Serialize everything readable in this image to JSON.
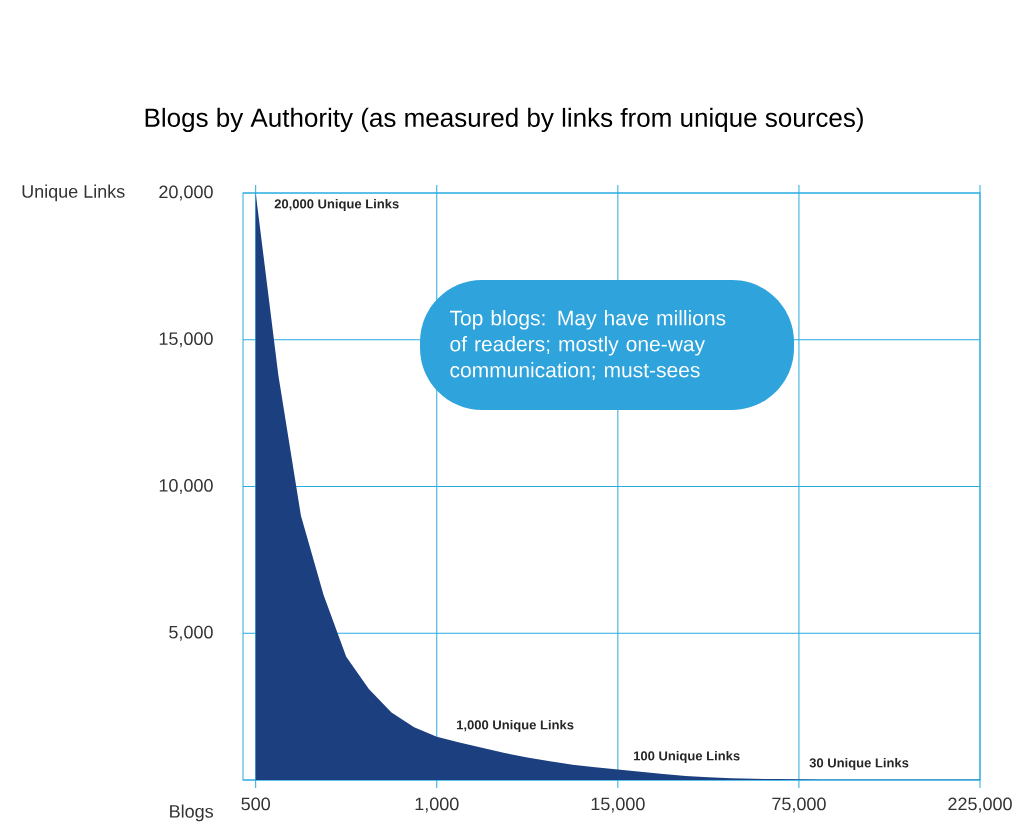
{
  "chart_data": {
    "type": "area",
    "title": "Blogs by Authority (as measured by links from unique sources)",
    "xlabel": "Blogs",
    "ylabel": "Unique Links",
    "categories": [
      "500",
      null,
      null,
      null,
      null,
      null,
      null,
      null,
      "1,000",
      null,
      null,
      null,
      null,
      null,
      null,
      null,
      "15,000",
      null,
      null,
      null,
      null,
      null,
      null,
      null,
      "75,000",
      null,
      null,
      null,
      null,
      null,
      null,
      null,
      "225,000"
    ],
    "values": [
      20000,
      13800,
      9000,
      6300,
      4200,
      3100,
      2300,
      1800,
      1470,
      1280,
      1100,
      920,
      770,
      640,
      520,
      430,
      360,
      280,
      200,
      140,
      90,
      60,
      40,
      30,
      20,
      10,
      10,
      10,
      10,
      10,
      10,
      10,
      10
    ],
    "color": "#1b3f7f",
    "ylim": [
      0,
      20000
    ],
    "yticks": [
      {
        "value": 0,
        "label": null
      },
      {
        "value": 5000,
        "label": "5,000"
      },
      {
        "value": 10000,
        "label": "10,000"
      },
      {
        "value": 15000,
        "label": "15,000"
      },
      {
        "value": 20000,
        "label": "20,000"
      }
    ],
    "grid": true,
    "annotations": [
      "Top blogs: May have millions of readers; mostly one-way communication; must-sees",
      "20,000 Unique Links",
      "1,000 Unique Links",
      "100 Unique Links",
      "30 Unique Links"
    ]
  }
}
